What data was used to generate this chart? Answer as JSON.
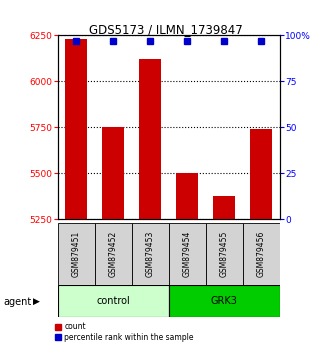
{
  "title": "GDS5173 / ILMN_1739847",
  "samples": [
    "GSM879451",
    "GSM879452",
    "GSM879453",
    "GSM879454",
    "GSM879455",
    "GSM879456"
  ],
  "counts": [
    6230,
    5750,
    6120,
    5500,
    5380,
    5740
  ],
  "percentile_ranks": [
    97,
    97,
    97,
    97,
    97,
    97
  ],
  "ylim_left": [
    5250,
    6250
  ],
  "ylim_right": [
    0,
    100
  ],
  "yticks_left": [
    5250,
    5500,
    5750,
    6000,
    6250
  ],
  "yticks_right": [
    0,
    25,
    50,
    75,
    100
  ],
  "ytick_labels_right": [
    "0",
    "25",
    "50",
    "75",
    "100%"
  ],
  "bar_color": "#cc0000",
  "dot_color": "#0000cc",
  "group_control_color": "#ccffcc",
  "group_grk3_color": "#00cc00",
  "group_ranges": [
    [
      0,
      2,
      "control"
    ],
    [
      3,
      5,
      "GRK3"
    ]
  ],
  "legend_count_color": "#cc0000",
  "legend_pct_color": "#0000cc",
  "agent_label": "agent",
  "grid_style": "dotted"
}
